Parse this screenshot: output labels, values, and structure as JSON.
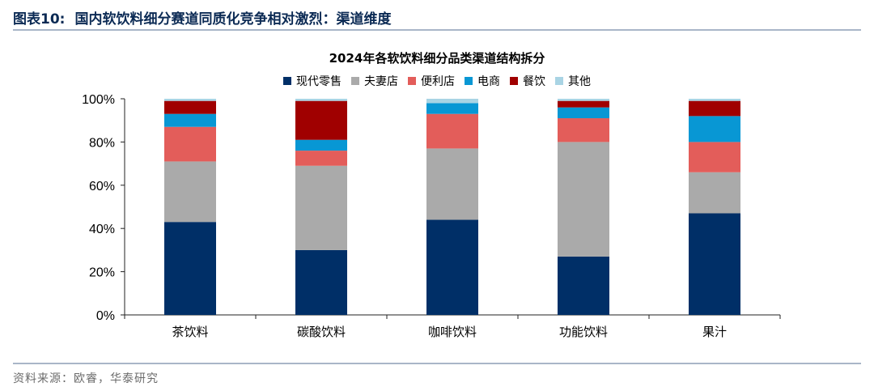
{
  "figure": {
    "number": "图表10:",
    "title": "国内软饮料细分赛道同质化竞争相对激烈：渠道维度",
    "source": "资料来源：欧睿，华泰研究"
  },
  "chart_data": {
    "type": "bar",
    "stacked": true,
    "title": "2024年各软饮料细分品类渠道结构拆分",
    "xlabel": "",
    "ylabel": "",
    "ylim": [
      0,
      100
    ],
    "y_ticks": [
      "0%",
      "20%",
      "40%",
      "60%",
      "80%",
      "100%"
    ],
    "legend_position": "top",
    "grid": false,
    "categories": [
      "茶饮料",
      "碳酸饮料",
      "咖啡饮料",
      "功能饮料",
      "果汁"
    ],
    "series": [
      {
        "name": "现代零售",
        "color": "#002f67",
        "values": [
          43,
          30,
          44,
          27,
          47
        ]
      },
      {
        "name": "夫妻店",
        "color": "#aaaaaa",
        "values": [
          28,
          39,
          33,
          53,
          19
        ]
      },
      {
        "name": "便利店",
        "color": "#e35d5a",
        "values": [
          16,
          7,
          16,
          11,
          14
        ]
      },
      {
        "name": "电商",
        "color": "#0897d4",
        "values": [
          6,
          5,
          5,
          5,
          12
        ]
      },
      {
        "name": "餐饮",
        "color": "#a00000",
        "values": [
          6,
          18,
          0,
          3,
          7
        ]
      },
      {
        "name": "其他",
        "color": "#a9d4e4",
        "values": [
          1,
          1,
          2,
          1,
          1
        ]
      }
    ]
  }
}
